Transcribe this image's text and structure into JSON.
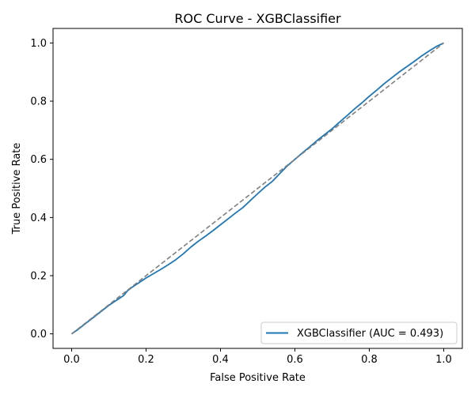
{
  "chart_data": {
    "type": "line",
    "title": "ROC Curve - XGBClassifier",
    "xlabel": "False Positive Rate",
    "ylabel": "True Positive Rate",
    "xlim": [
      -0.05,
      1.05
    ],
    "ylim": [
      -0.05,
      1.05
    ],
    "x_ticks": [
      0.0,
      0.2,
      0.4,
      0.6,
      0.8,
      1.0
    ],
    "x_tick_labels": [
      "0.0",
      "0.2",
      "0.4",
      "0.6",
      "0.8",
      "1.0"
    ],
    "y_ticks": [
      0.0,
      0.2,
      0.4,
      0.6,
      0.8,
      1.0
    ],
    "y_tick_labels": [
      "0.0",
      "0.2",
      "0.4",
      "0.6",
      "0.8",
      "1.0"
    ],
    "grid": false,
    "legend_position": "lower right",
    "series": [
      {
        "name": "XGBClassifier (AUC = 0.493)",
        "color": "#1f77b4",
        "style": "solid",
        "x": [
          0.0,
          0.02,
          0.04,
          0.06,
          0.08,
          0.1,
          0.12,
          0.14,
          0.15,
          0.16,
          0.18,
          0.2,
          0.22,
          0.24,
          0.26,
          0.28,
          0.3,
          0.32,
          0.34,
          0.36,
          0.38,
          0.4,
          0.42,
          0.44,
          0.46,
          0.48,
          0.5,
          0.52,
          0.54,
          0.56,
          0.58,
          0.6,
          0.62,
          0.64,
          0.66,
          0.68,
          0.7,
          0.72,
          0.74,
          0.76,
          0.78,
          0.8,
          0.82,
          0.84,
          0.86,
          0.88,
          0.9,
          0.92,
          0.94,
          0.96,
          0.98,
          1.0
        ],
        "y": [
          0.0,
          0.018,
          0.038,
          0.058,
          0.078,
          0.098,
          0.115,
          0.132,
          0.148,
          0.158,
          0.175,
          0.192,
          0.207,
          0.222,
          0.238,
          0.255,
          0.275,
          0.298,
          0.318,
          0.336,
          0.355,
          0.375,
          0.395,
          0.415,
          0.434,
          0.458,
          0.482,
          0.505,
          0.525,
          0.552,
          0.578,
          0.6,
          0.622,
          0.643,
          0.665,
          0.685,
          0.705,
          0.728,
          0.75,
          0.773,
          0.794,
          0.817,
          0.838,
          0.86,
          0.88,
          0.9,
          0.918,
          0.936,
          0.955,
          0.972,
          0.988,
          1.0
        ]
      },
      {
        "name": "",
        "color": "#808080",
        "style": "dashed",
        "x": [
          0.0,
          1.0
        ],
        "y": [
          0.0,
          1.0
        ]
      }
    ]
  }
}
